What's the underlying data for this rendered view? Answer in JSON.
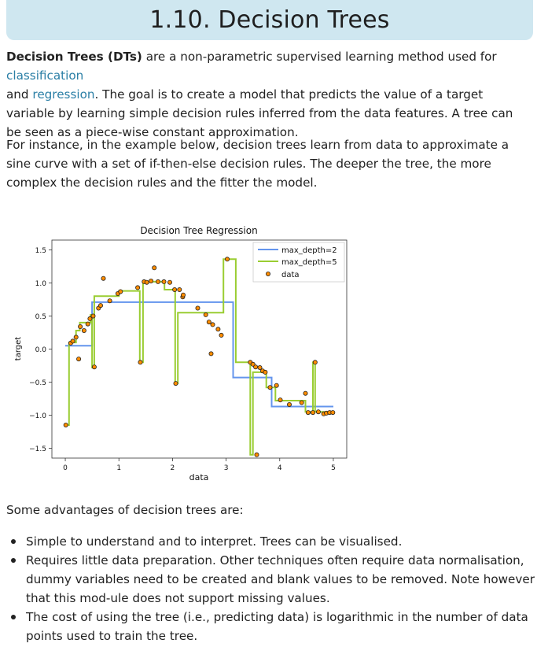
{
  "page": {
    "title": "1.10. Decision Trees"
  },
  "intro": {
    "bold_term": "Decision Trees (DTs)",
    "text_1": " are a non-parametric supervised learning method used for ",
    "link_classification": "classification",
    "text_2": " and ",
    "link_regression": "regression",
    "text_3": ". The goal is to create a model that predicts the value of a target variable by learning simple decision rules inferred from the data features. A tree can be seen as a piece-wise constant approximation."
  },
  "example_paragraph": "For instance, in the example below, decision trees learn from data to approximate a sine curve with a set of if-then-else decision rules. The deeper the tree, the more complex the decision rules and the fitter the model.",
  "advantages_intro": "Some advantages of decision trees are:",
  "advantages": [
    "Simple to understand and to interpret. Trees can be visualised.",
    "Requires little data preparation. Other techniques often require data normalisation, dummy variables need to be created and blank values to be removed. Note however that this mod-ule does not support missing values.",
    "The cost of using the tree (i.e., predicting data) is logarithmic in the number of data points used to train the tree."
  ],
  "chart_data": {
    "type": "line",
    "title": "Decision Tree Regression",
    "xlabel": "data",
    "ylabel": "target",
    "xlim": [
      -0.25,
      5.25
    ],
    "ylim": [
      -1.65,
      1.65
    ],
    "xticks": [
      0,
      1,
      2,
      3,
      4,
      5
    ],
    "xtick_labels": [
      "0",
      "1",
      "2",
      "3",
      "4",
      "5"
    ],
    "yticks": [
      1.5,
      1.0,
      0.5,
      0.0,
      -0.5,
      -1.0,
      -1.5
    ],
    "ytick_labels": [
      "1.5",
      "1.0",
      "0.5",
      "0.0",
      "−0.5",
      "−1.0",
      "−1.5"
    ],
    "grid": false,
    "legend": "top-right",
    "series": [
      {
        "name": "max_depth=2",
        "color": "#6495ed",
        "step_points": [
          [
            0.0,
            0.05
          ],
          [
            0.5,
            0.05
          ],
          [
            0.5,
            0.71
          ],
          [
            3.13,
            0.71
          ],
          [
            3.13,
            -0.43
          ],
          [
            3.85,
            -0.43
          ],
          [
            3.85,
            -0.87
          ],
          [
            5.0,
            -0.87
          ]
        ]
      },
      {
        "name": "max_depth=5",
        "color": "#9acd32",
        "step_points": [
          [
            0.0,
            -1.15
          ],
          [
            0.07,
            -1.15
          ],
          [
            0.07,
            0.1
          ],
          [
            0.2,
            0.1
          ],
          [
            0.2,
            0.28
          ],
          [
            0.27,
            0.28
          ],
          [
            0.27,
            0.4
          ],
          [
            0.47,
            0.4
          ],
          [
            0.47,
            0.52
          ],
          [
            0.5,
            0.52
          ],
          [
            0.5,
            -0.28
          ],
          [
            0.54,
            -0.28
          ],
          [
            0.54,
            0.8
          ],
          [
            1.0,
            0.8
          ],
          [
            1.0,
            0.88
          ],
          [
            1.39,
            0.88
          ],
          [
            1.39,
            -0.2
          ],
          [
            1.45,
            -0.2
          ],
          [
            1.45,
            1.02
          ],
          [
            1.85,
            1.02
          ],
          [
            1.85,
            0.9
          ],
          [
            2.05,
            0.9
          ],
          [
            2.05,
            -0.52
          ],
          [
            2.1,
            -0.52
          ],
          [
            2.1,
            0.55
          ],
          [
            2.95,
            0.55
          ],
          [
            2.95,
            1.36
          ],
          [
            3.18,
            1.36
          ],
          [
            3.18,
            -0.2
          ],
          [
            3.45,
            -0.2
          ],
          [
            3.45,
            -1.6
          ],
          [
            3.5,
            -1.6
          ],
          [
            3.5,
            -0.35
          ],
          [
            3.75,
            -0.35
          ],
          [
            3.75,
            -0.58
          ],
          [
            3.92,
            -0.58
          ],
          [
            3.92,
            -0.78
          ],
          [
            4.48,
            -0.78
          ],
          [
            4.48,
            -0.95
          ],
          [
            4.62,
            -0.95
          ],
          [
            4.62,
            -0.2
          ],
          [
            4.66,
            -0.2
          ],
          [
            4.66,
            -0.95
          ],
          [
            5.0,
            -0.95
          ]
        ]
      },
      {
        "name": "data",
        "type": "scatter",
        "color": "#ff8c00",
        "points": [
          [
            0.01,
            -1.15
          ],
          [
            0.1,
            0.09
          ],
          [
            0.14,
            0.12
          ],
          [
            0.2,
            0.18
          ],
          [
            0.25,
            -0.15
          ],
          [
            0.28,
            0.34
          ],
          [
            0.35,
            0.28
          ],
          [
            0.42,
            0.38
          ],
          [
            0.46,
            0.46
          ],
          [
            0.52,
            0.5
          ],
          [
            0.54,
            -0.27
          ],
          [
            0.62,
            0.62
          ],
          [
            0.66,
            0.66
          ],
          [
            0.71,
            1.07
          ],
          [
            0.83,
            0.73
          ],
          [
            0.98,
            0.84
          ],
          [
            1.03,
            0.87
          ],
          [
            1.35,
            0.93
          ],
          [
            1.4,
            -0.2
          ],
          [
            1.47,
            1.02
          ],
          [
            1.52,
            1.01
          ],
          [
            1.6,
            1.03
          ],
          [
            1.66,
            1.23
          ],
          [
            1.73,
            1.02
          ],
          [
            1.84,
            1.02
          ],
          [
            1.95,
            1.01
          ],
          [
            2.04,
            0.9
          ],
          [
            2.06,
            -0.52
          ],
          [
            2.13,
            0.9
          ],
          [
            2.19,
            0.79
          ],
          [
            2.2,
            0.82
          ],
          [
            2.47,
            0.62
          ],
          [
            2.62,
            0.52
          ],
          [
            2.68,
            0.41
          ],
          [
            2.72,
            -0.07
          ],
          [
            2.75,
            0.37
          ],
          [
            2.85,
            0.3
          ],
          [
            2.91,
            0.21
          ],
          [
            3.02,
            1.36
          ],
          [
            3.45,
            -0.2
          ],
          [
            3.5,
            -0.23
          ],
          [
            3.55,
            -0.27
          ],
          [
            3.57,
            -1.6
          ],
          [
            3.63,
            -0.28
          ],
          [
            3.68,
            -0.33
          ],
          [
            3.73,
            -0.35
          ],
          [
            3.82,
            -0.58
          ],
          [
            3.94,
            -0.55
          ],
          [
            4.01,
            -0.77
          ],
          [
            4.18,
            -0.84
          ],
          [
            4.41,
            -0.81
          ],
          [
            4.48,
            -0.67
          ],
          [
            4.53,
            -0.96
          ],
          [
            4.62,
            -0.96
          ],
          [
            4.66,
            -0.2
          ],
          [
            4.72,
            -0.95
          ],
          [
            4.82,
            -0.98
          ],
          [
            4.87,
            -0.97
          ],
          [
            4.93,
            -0.96
          ],
          [
            4.99,
            -0.96
          ]
        ]
      }
    ]
  }
}
